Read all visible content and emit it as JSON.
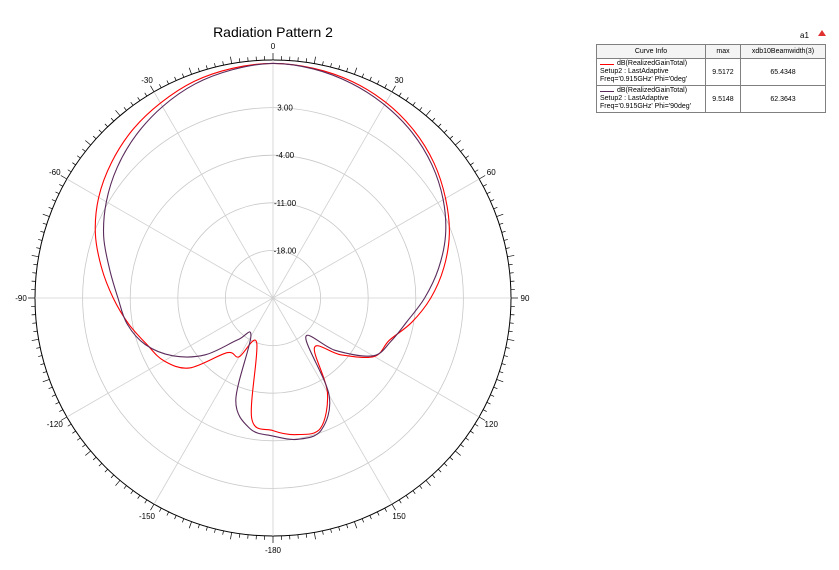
{
  "chart_data": {
    "type": "polar-line",
    "title": "Radiation Pattern 2",
    "corner_label": "a1",
    "radial_tick_labels": [
      "3.00",
      "-4.00",
      "-11.00",
      "-18.00"
    ],
    "radial_range_db": [
      -25,
      10
    ],
    "angle_labels": [
      "0",
      "30",
      "60",
      "90",
      "120",
      "150",
      "-180",
      "-150",
      "-120",
      "-90",
      "-60",
      "-30"
    ],
    "angle_values": [
      0,
      30,
      60,
      90,
      120,
      150,
      180,
      -150,
      -120,
      -90,
      -60,
      -30
    ],
    "series": [
      {
        "color": "#ff0000",
        "angle_deg": [
          0,
          10,
          20,
          30,
          40,
          50,
          60,
          70,
          80,
          90,
          100,
          110,
          120,
          130,
          140,
          150,
          160,
          170,
          180,
          -170,
          -160,
          -150,
          -140,
          -130,
          -120,
          -110,
          -100,
          -90,
          -80,
          -70,
          -60,
          -50,
          -40,
          -30,
          -20,
          -10
        ],
        "gain_db": [
          9.5,
          9.3,
          8.9,
          8.2,
          7.2,
          5.9,
          4.3,
          2.6,
          0.5,
          -1.8,
          -4.3,
          -6.8,
          -7.8,
          -12.0,
          -15.5,
          -9.0,
          -4.6,
          -4.6,
          -5.5,
          -7.0,
          -18.0,
          -15.0,
          -14.5,
          -9.0,
          -6.5,
          -5.2,
          -3.4,
          -1.5,
          0.6,
          2.8,
          4.6,
          6.0,
          7.2,
          8.1,
          8.9,
          9.3
        ]
      },
      {
        "color": "#5a2a5a",
        "angle_deg": [
          0,
          10,
          20,
          30,
          40,
          50,
          60,
          70,
          80,
          90,
          100,
          110,
          120,
          130,
          140,
          150,
          160,
          170,
          180,
          -170,
          -160,
          -150,
          -140,
          -130,
          -120,
          -110,
          -100,
          -90,
          -80,
          -70,
          -60,
          -50,
          -40,
          -30,
          -20,
          -10
        ],
        "gain_db": [
          9.5,
          9.2,
          8.6,
          7.8,
          6.8,
          5.5,
          3.9,
          2.0,
          -0.3,
          -2.7,
          -5.0,
          -6.5,
          -8.0,
          -13.0,
          -17.5,
          -8.5,
          -4.3,
          -3.9,
          -4.7,
          -5.5,
          -9.0,
          -18.5,
          -17.0,
          -12.0,
          -8.0,
          -5.0,
          -3.2,
          -2.2,
          -0.6,
          1.5,
          3.3,
          4.9,
          6.3,
          7.5,
          8.5,
          9.1
        ]
      }
    ]
  },
  "legend": {
    "headers": [
      "Curve Info",
      "max",
      "xdb10Beamwidth(3)"
    ],
    "rows": [
      {
        "color": "#ff0000",
        "line1": "dB(RealizedGainTotal)",
        "line2": "Setup2 : LastAdaptive",
        "line3": "Freq='0.915GHz' Phi='0deg'",
        "max": "9.5172",
        "beamwidth": "65.4348"
      },
      {
        "color": "#5a2a5a",
        "line1": "dB(RealizedGainTotal)",
        "line2": "Setup2 : LastAdaptive",
        "line3": "Freq='0.915GHz' Phi='90deg'",
        "max": "9.5148",
        "beamwidth": "62.3643"
      }
    ]
  }
}
